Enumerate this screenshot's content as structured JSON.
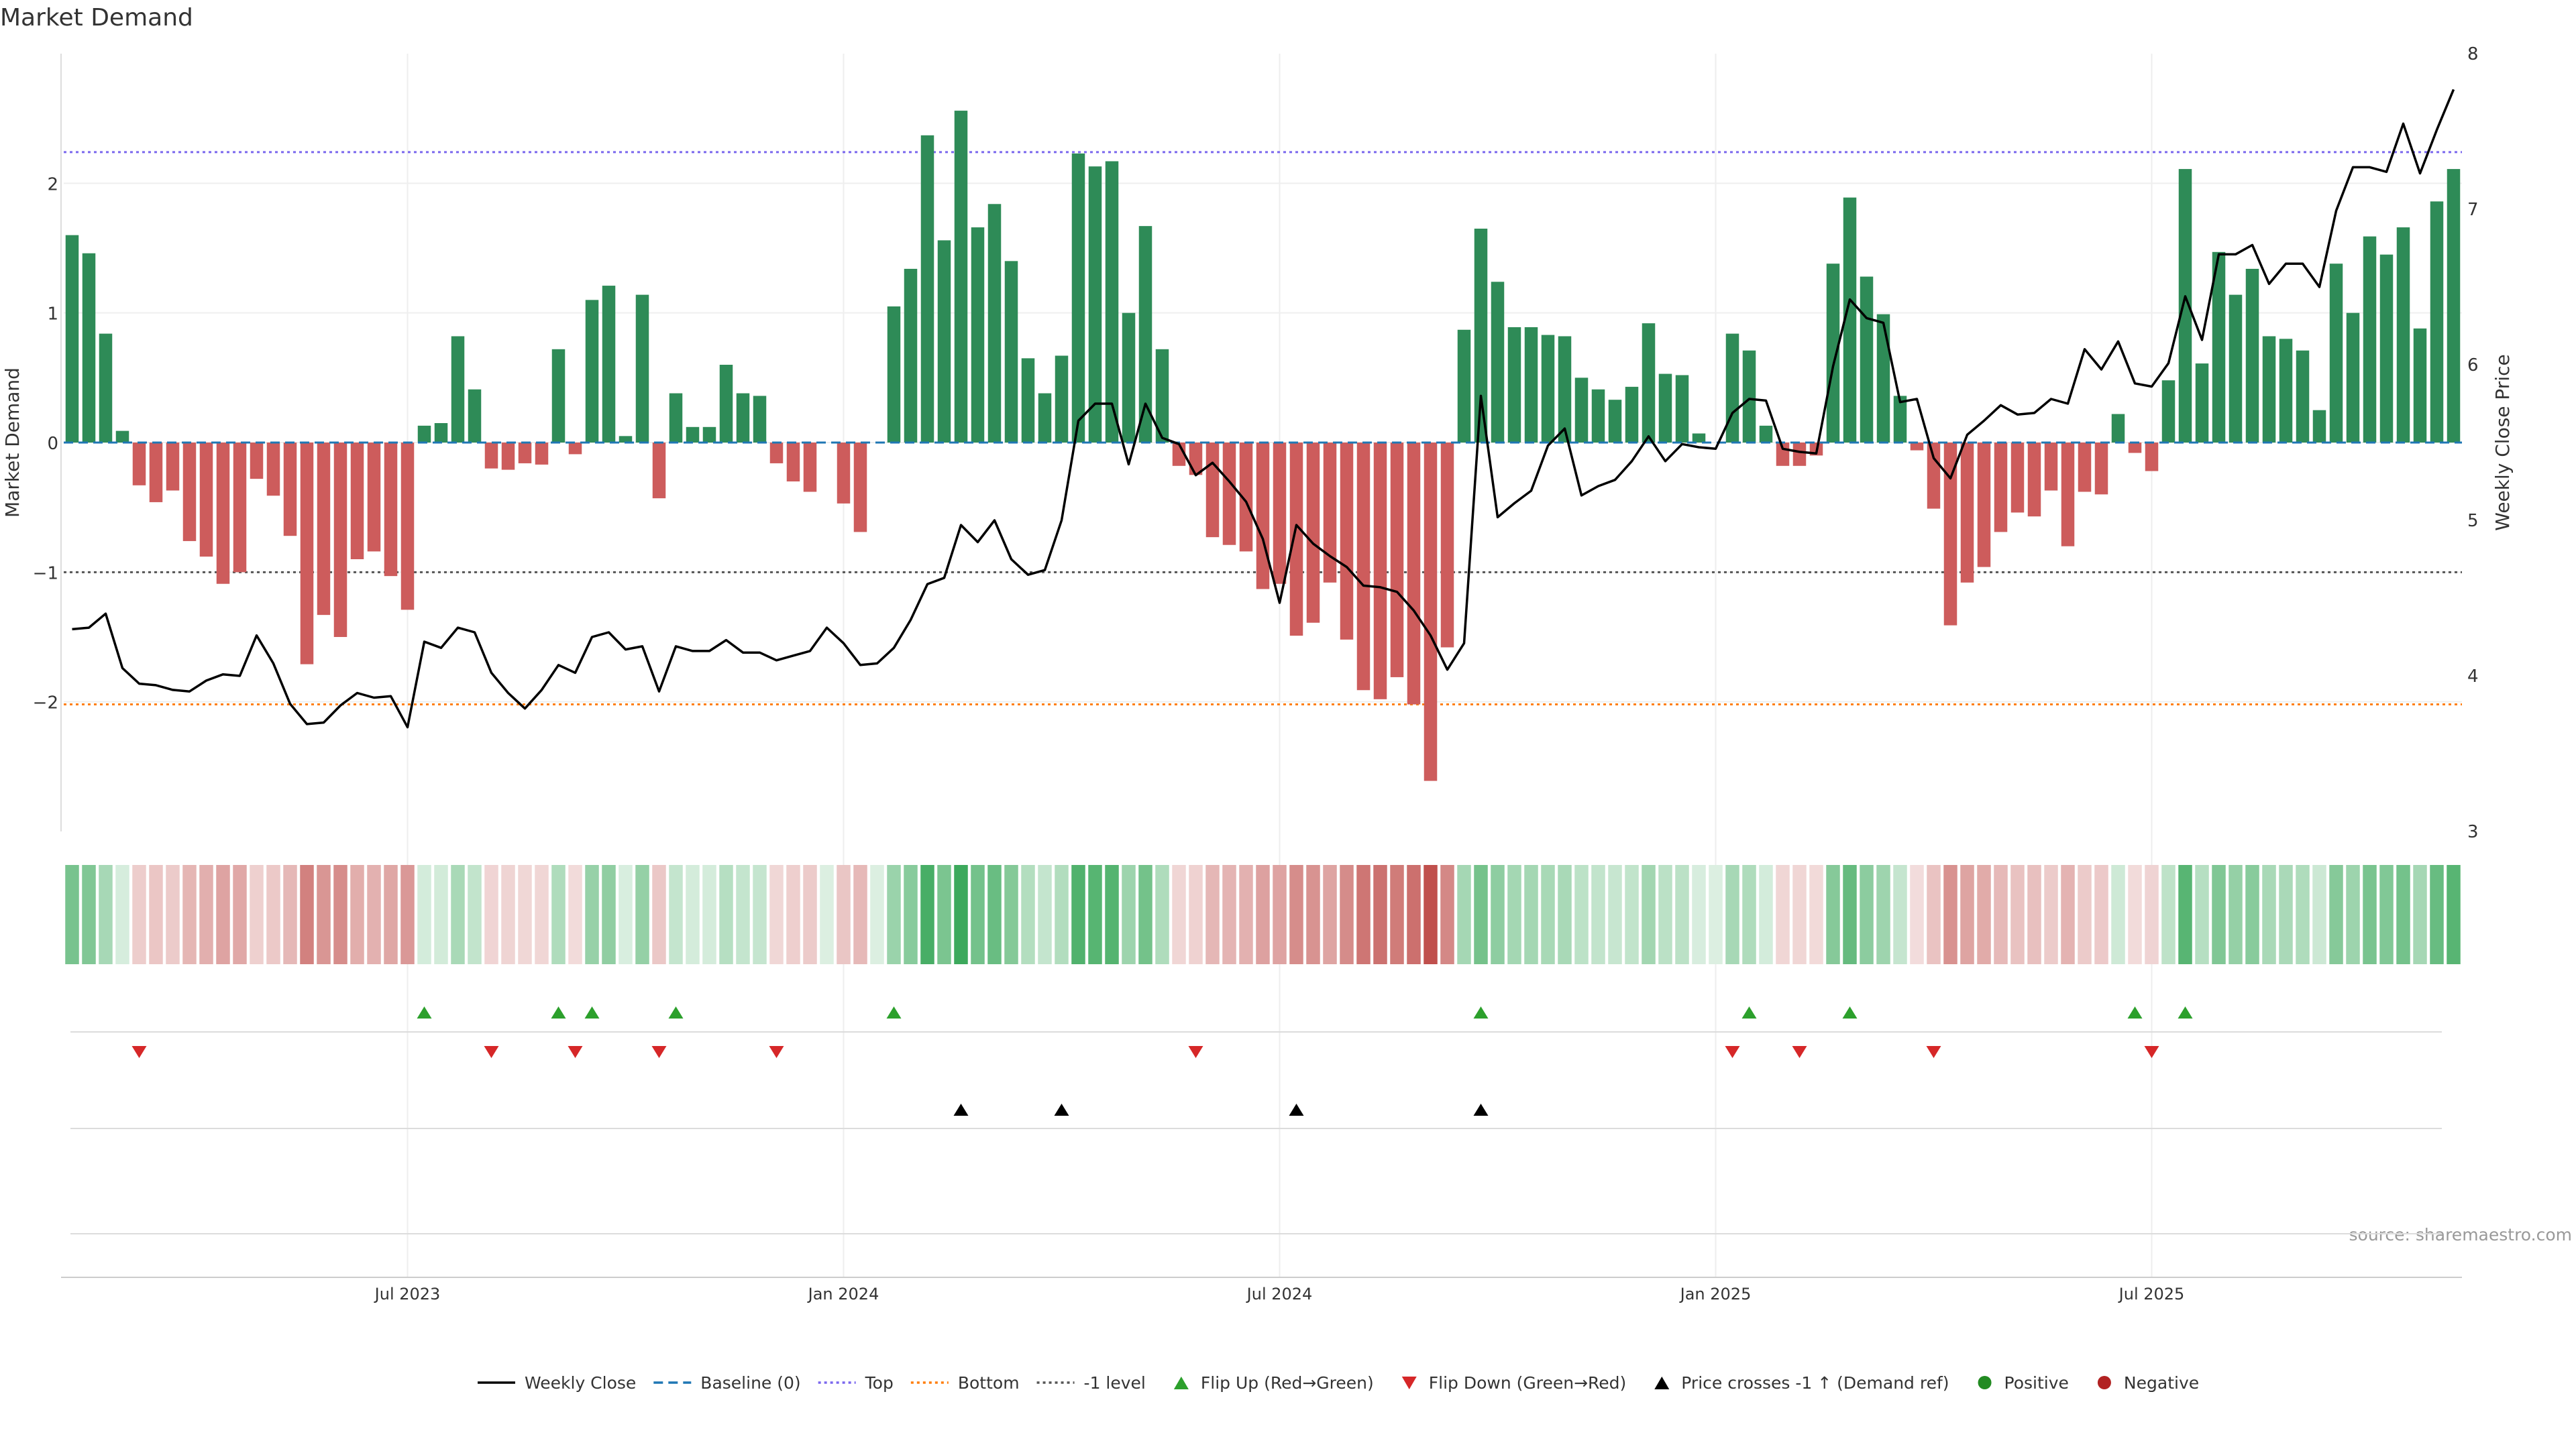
{
  "chart_data": {
    "type": "bar",
    "title": "Market Demand",
    "ylabel_left": "Market Demand",
    "ylabel_right": "Weekly Close Price",
    "source": "source: sharemaestro.com",
    "left_ylim": [
      -3,
      3
    ],
    "right_ylim": [
      3,
      8
    ],
    "left_yticks": [
      {
        "v": 2,
        "label": "2"
      },
      {
        "v": 1,
        "label": "1"
      },
      {
        "v": 0,
        "label": "0"
      },
      {
        "v": -1,
        "label": "−1"
      },
      {
        "v": -2,
        "label": "−2"
      }
    ],
    "right_yticks": [
      {
        "v": 8,
        "label": "8"
      },
      {
        "v": 7,
        "label": "7"
      },
      {
        "v": 6,
        "label": "6"
      },
      {
        "v": 5,
        "label": "5"
      },
      {
        "v": 4,
        "label": "4"
      },
      {
        "v": 3,
        "label": "3"
      }
    ],
    "x_ticks": [
      {
        "index": 20,
        "label": "Jul 2023"
      },
      {
        "index": 46,
        "label": "Jan 2024"
      },
      {
        "index": 72,
        "label": "Jul 2024"
      },
      {
        "index": 98,
        "label": "Jan 2025"
      },
      {
        "index": 124,
        "label": "Jul 2025"
      }
    ],
    "reference_lines": {
      "top": 2.24,
      "bottom": -2.02,
      "minus_one": -1
    },
    "demand": [
      1.6,
      1.46,
      0.84,
      0.09,
      -0.33,
      -0.46,
      -0.37,
      -0.76,
      -0.88,
      -1.09,
      -1.0,
      -0.28,
      -0.41,
      -0.72,
      -1.71,
      -1.33,
      -1.5,
      -0.9,
      -0.84,
      -1.03,
      -1.29,
      0.13,
      0.15,
      0.82,
      0.41,
      -0.2,
      -0.21,
      -0.16,
      -0.17,
      0.72,
      -0.09,
      1.1,
      1.21,
      0.05,
      1.14,
      -0.43,
      0.38,
      0.12,
      0.12,
      0.6,
      0.38,
      0.36,
      -0.16,
      -0.3,
      -0.38,
      0.0,
      -0.47,
      -0.69,
      0.0,
      1.05,
      1.34,
      2.37,
      1.56,
      2.56,
      1.66,
      1.84,
      1.4,
      0.65,
      0.38,
      0.67,
      2.23,
      2.13,
      2.17,
      1.0,
      1.67,
      0.72,
      -0.18,
      -0.25,
      -0.73,
      -0.79,
      -0.84,
      -1.13,
      -1.09,
      -1.49,
      -1.39,
      -1.08,
      -1.52,
      -1.91,
      -1.98,
      -1.81,
      -2.02,
      -2.61,
      -1.58,
      0.87,
      1.65,
      1.24,
      0.89,
      0.89,
      0.83,
      0.82,
      0.5,
      0.41,
      0.33,
      0.43,
      0.92,
      0.53,
      0.52,
      0.07,
      0.0,
      0.84,
      0.71,
      0.13,
      -0.18,
      -0.18,
      -0.1,
      1.38,
      1.89,
      1.28,
      0.99,
      0.36,
      -0.06,
      -0.51,
      -1.41,
      -1.08,
      -0.96,
      -0.69,
      -0.54,
      -0.57,
      -0.37,
      -0.8,
      -0.38,
      -0.4,
      0.22,
      -0.08,
      -0.22,
      0.48,
      2.11,
      0.61,
      1.47,
      1.14,
      1.34,
      0.82,
      0.8,
      0.71,
      0.25,
      1.38,
      1.0,
      1.59,
      1.45,
      1.66,
      0.88,
      1.86,
      2.11
    ],
    "weekly_close": [
      4.3,
      4.31,
      4.4,
      4.05,
      3.95,
      3.94,
      3.91,
      3.9,
      3.97,
      4.01,
      4.0,
      4.26,
      4.08,
      3.82,
      3.69,
      3.7,
      3.81,
      3.89,
      3.86,
      3.87,
      3.67,
      4.22,
      4.18,
      4.31,
      4.28,
      4.02,
      3.89,
      3.79,
      3.91,
      4.07,
      4.02,
      4.25,
      4.28,
      4.17,
      4.19,
      3.9,
      4.19,
      4.16,
      4.16,
      4.23,
      4.15,
      4.15,
      4.1,
      4.13,
      4.16,
      4.31,
      4.21,
      4.07,
      4.08,
      4.18,
      4.36,
      4.59,
      4.63,
      4.97,
      4.86,
      5.0,
      4.75,
      4.65,
      4.68,
      5.0,
      5.64,
      5.75,
      5.75,
      5.36,
      5.75,
      5.53,
      5.49,
      5.29,
      5.37,
      5.25,
      5.12,
      4.88,
      4.47,
      4.97,
      4.85,
      4.77,
      4.7,
      4.58,
      4.57,
      4.54,
      4.42,
      4.26,
      4.04,
      4.21,
      5.8,
      5.02,
      5.11,
      5.19,
      5.48,
      5.59,
      5.16,
      5.22,
      5.26,
      5.38,
      5.54,
      5.38,
      5.49,
      5.47,
      5.46,
      5.69,
      5.78,
      5.77,
      5.46,
      5.44,
      5.43,
      5.99,
      6.42,
      6.3,
      6.27,
      5.76,
      5.78,
      5.4,
      5.27,
      5.55,
      5.64,
      5.74,
      5.68,
      5.69,
      5.78,
      5.75,
      6.1,
      5.97,
      6.15,
      5.88,
      5.86,
      6.01,
      6.44,
      6.16,
      6.71,
      6.71,
      6.77,
      6.52,
      6.65,
      6.65,
      6.5,
      6.99,
      7.27,
      7.27,
      7.24,
      7.55,
      7.23,
      7.51,
      7.77
    ],
    "flip_up_indices": [
      21,
      29,
      31,
      36,
      49,
      84,
      100,
      106,
      123,
      126
    ],
    "flip_down_indices": [
      4,
      25,
      30,
      35,
      42,
      67,
      99,
      103,
      111,
      124
    ],
    "price_cross_indices": [
      53,
      59,
      73,
      84
    ],
    "colors": {
      "positive": "#2e8b57",
      "negative": "#cd5c5c",
      "flip_up": "#2ca02c",
      "flip_down": "#d62728",
      "price_cross": "#000000",
      "top_line": "#7b68ee",
      "bottom_line": "#ff7f0e",
      "minus_one_line": "#555555",
      "baseline": "#1f77b4",
      "heat_pos_strong": "#3aa85a",
      "heat_neg_strong": "#c0504d",
      "positive_dot": "#228b22",
      "negative_dot": "#b22222"
    },
    "legend_position": "bottom-center",
    "legend": [
      {
        "label": "Weekly Close",
        "kind": "line",
        "color": "#000000",
        "dash": ""
      },
      {
        "label": "Baseline (0)",
        "kind": "line",
        "color": "#1f77b4",
        "dash": "14,8"
      },
      {
        "label": "Top",
        "kind": "line",
        "color": "#7b68ee",
        "dash": "4,5"
      },
      {
        "label": "Bottom",
        "kind": "line",
        "color": "#ff7f0e",
        "dash": "4,5"
      },
      {
        "label": "-1 level",
        "kind": "line",
        "color": "#555555",
        "dash": "4,5"
      },
      {
        "label": "Flip Up (Red→Green)",
        "kind": "tri-up",
        "color": "#2ca02c"
      },
      {
        "label": "Flip Down (Green→Red)",
        "kind": "tri-down",
        "color": "#d62728"
      },
      {
        "label": "Price crosses -1 ↑ (Demand ref)",
        "kind": "tri-up",
        "color": "#000000"
      },
      {
        "label": "Positive",
        "kind": "dot",
        "color": "#228b22"
      },
      {
        "label": "Negative",
        "kind": "dot",
        "color": "#b22222"
      }
    ]
  }
}
